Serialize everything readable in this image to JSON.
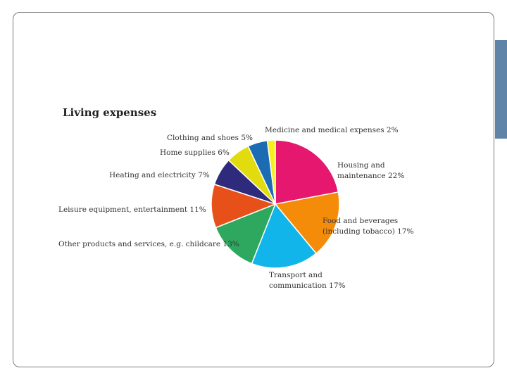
{
  "chart_data": {
    "type": "pie",
    "title": "Living expenses",
    "slices": [
      {
        "label": "Housing and maintenance",
        "label_lines": [
          "Housing and",
          "maintenance 22%"
        ],
        "value": 22,
        "color": "#e6176f"
      },
      {
        "label": "Food and beverages (including tobacco)",
        "label_lines": [
          "Food and beverages",
          "(including tobacco) 17%"
        ],
        "value": 17,
        "color": "#f48c0a"
      },
      {
        "label": "Transport and communication",
        "label_lines": [
          "Transport and",
          "communication 17%"
        ],
        "value": 17,
        "color": "#12b5ea"
      },
      {
        "label": "Other products and services, e.g. childcare",
        "label_lines": [
          "Other products and services, e.g. childcare 13%"
        ],
        "value": 13,
        "color": "#2ea85e"
      },
      {
        "label": "Leisure equipment, entertainment",
        "label_lines": [
          "Leisure equipment, entertainment 11%"
        ],
        "value": 11,
        "color": "#e8501a"
      },
      {
        "label": "Heating and electricity",
        "label_lines": [
          "Heating and electricity 7%"
        ],
        "value": 7,
        "color": "#2e2a7c"
      },
      {
        "label": "Home supplies",
        "label_lines": [
          "Home supplies 6%"
        ],
        "value": 6,
        "color": "#e2dc0e"
      },
      {
        "label": "Clothing and shoes",
        "label_lines": [
          "Clothing and shoes 5%"
        ],
        "value": 5,
        "color": "#1c6cb4"
      },
      {
        "label": "Medicine and medical expenses",
        "label_lines": [
          "Medicine and medical expenses 2%"
        ],
        "value": 2,
        "color": "#f8ee1a"
      }
    ]
  }
}
